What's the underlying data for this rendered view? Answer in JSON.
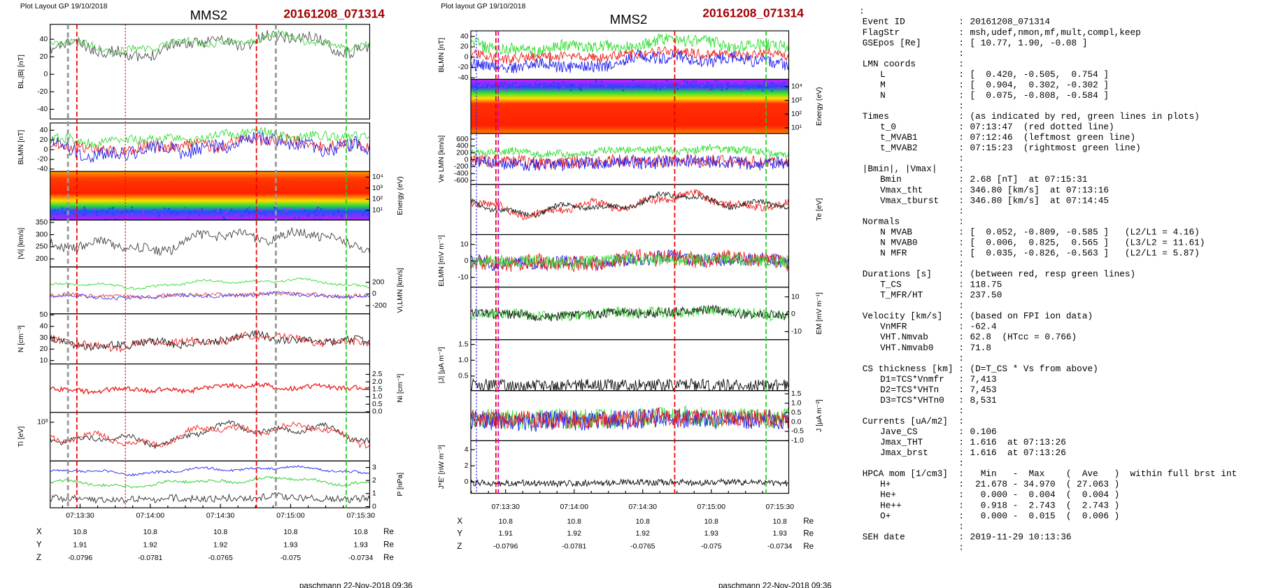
{
  "left_plot": {
    "header": "Plot Layout GP 19/10/2018",
    "spacecraft": "MMS2",
    "event": "20161208_071314",
    "panels": [
      {
        "ylabel": "BL,|B| [nT]",
        "side": "left",
        "ylim": [
          -51,
          57
        ],
        "yticks": [
          40,
          20,
          0,
          -20,
          -40
        ]
      },
      {
        "ylabel": "BLMN [nT]",
        "side": "left",
        "ylim": [
          -45,
          55
        ],
        "yticks": [
          40,
          20,
          0,
          -20,
          -40
        ]
      },
      {
        "ylabel": "Energy (eV)",
        "side": "right",
        "log": true,
        "ylim": [
          1.3,
          32000
        ],
        "yticks": [
          {
            "value": 10000,
            "label": "10⁴"
          },
          {
            "value": 1000,
            "label": "10³"
          },
          {
            "value": 100,
            "label": "10²"
          },
          {
            "value": 10,
            "label": "10¹"
          }
        ]
      },
      {
        "ylabel": "|Vi| [km/s]",
        "side": "left",
        "ylim": [
          167,
          360
        ],
        "yticks": [
          350,
          300,
          250,
          200
        ]
      },
      {
        "ylabel": "Vi,LMN [km/s]",
        "side": "right",
        "ylim": [
          -338,
          462
        ],
        "yticks": [
          200,
          0,
          -200
        ]
      },
      {
        "ylabel": "N [cm⁻³]",
        "side": "left",
        "ylim": [
          7,
          51
        ],
        "yticks": [
          50,
          40,
          30,
          20,
          10
        ]
      },
      {
        "ylabel": "Ni [cm⁻³]",
        "side": "right",
        "ylim": [
          -0.05,
          3.2
        ],
        "yticks": [
          2.5,
          {
            "value": 2,
            "label": "2.0"
          },
          1.5,
          {
            "value": 1,
            "label": "1.0"
          },
          0.5,
          {
            "value": 0,
            "label": "0.0"
          }
        ]
      },
      {
        "ylabel": "Ti [eV]",
        "side": "left",
        "log": true,
        "ylim": [
          200,
          1500
        ],
        "yticks": [
          {
            "value": 1000,
            "label": "10³"
          }
        ]
      },
      {
        "ylabel": "P [nPa]",
        "side": "right",
        "ylim": [
          -0.1,
          3.5
        ],
        "yticks": [
          3,
          2,
          1,
          0
        ]
      }
    ],
    "time_labels": [
      "07:13:30",
      "07:14:00",
      "07:14:30",
      "07:15:00",
      "07:15:30"
    ],
    "orbit": {
      "unit": "Re",
      "rows": [
        {
          "name": "X",
          "values": [
            10.8,
            10.8,
            10.8,
            10.8,
            10.8
          ]
        },
        {
          "name": "Y",
          "values": [
            1.91,
            1.92,
            1.92,
            1.93,
            1.93
          ]
        },
        {
          "name": "Z",
          "values": [
            -0.0796,
            -0.0781,
            -0.0765,
            -0.075,
            -0.0734
          ]
        }
      ]
    },
    "footer": "paschmann 22-Nov-2018 09:36"
  },
  "middle_plot": {
    "header": "Plot layout GP 19/10/2018",
    "spacecraft": "MMS2",
    "event": "20161208_071314",
    "panels": [
      {
        "ylabel": "BLMN [nT]",
        "side": "left",
        "ylim": [
          -43,
          51
        ],
        "yticks": [
          40,
          20,
          0,
          -20,
          -40
        ]
      },
      {
        "ylabel": "Energy (eV)",
        "side": "right",
        "log": true,
        "ylim": [
          3.9,
          34000
        ],
        "yticks": [
          {
            "value": 10000,
            "label": "10⁴"
          },
          {
            "value": 1000,
            "label": "10³"
          },
          {
            "value": 100,
            "label": "10²"
          },
          {
            "value": 10,
            "label": "10¹"
          }
        ]
      },
      {
        "ylabel": "Ve LMN [km/s]",
        "side": "left",
        "ylim": [
          -718,
          765
        ],
        "yticks": [
          600,
          400,
          200,
          0,
          -200,
          -400,
          -600
        ]
      },
      {
        "ylabel": "Te [eV]",
        "side": "right"
      },
      {
        "ylabel": "ELMN [mV m⁻¹]",
        "side": "left",
        "ylim": [
          -16,
          16
        ],
        "yticks": [
          10,
          0,
          -10
        ]
      },
      {
        "ylabel": "EM [mV m⁻¹]",
        "side": "right",
        "ylim": [
          -14.6,
          15.6
        ],
        "yticks": [
          10,
          0,
          -10
        ]
      },
      {
        "ylabel": "|J| [μA m⁻²]",
        "side": "left",
        "ylim": [
          0.04,
          1.65
        ],
        "yticks": [
          1.5,
          {
            "value": 1,
            "label": "1.0"
          },
          0.5
        ]
      },
      {
        "ylabel": "J [μA m⁻²]",
        "side": "right",
        "ylim": [
          -1,
          1.67
        ],
        "yticks": [
          1.5,
          {
            "value": 1,
            "label": "1.0"
          },
          0.5,
          {
            "value": 0,
            "label": "0.0"
          },
          -0.5,
          {
            "value": -1,
            "label": "-1.0"
          }
        ]
      },
      {
        "ylabel": "J*E' [nW m⁻³]",
        "side": "left",
        "ylim": [
          -1.4,
          5.1
        ],
        "yticks": [
          4,
          2,
          0
        ]
      }
    ],
    "time_labels": [
      "07:13:30",
      "07:14:00",
      "07:14:30",
      "07:15:00",
      "07:15:30"
    ],
    "orbit": {
      "unit": "Re",
      "rows": [
        {
          "name": "X",
          "values": [
            10.8,
            10.8,
            10.8,
            10.8,
            10.8
          ]
        },
        {
          "name": "Y",
          "values": [
            1.91,
            1.92,
            1.92,
            1.93,
            1.93
          ]
        },
        {
          "name": "Z",
          "values": [
            -0.0796,
            -0.0781,
            -0.0765,
            -0.075,
            -0.0734
          ]
        }
      ]
    },
    "footer": "paschmann 22-Nov-2018 09:36"
  },
  "summary": {
    "separator": ":",
    "sections": [
      {
        "items": [
          {
            "label": "Event ID",
            "value": "20161208_071314"
          },
          {
            "label": "FlagStr",
            "value": "msh,udef,nmon,mf,mult,compl,keep"
          },
          {
            "label": "GSEpos [Re]",
            "value": "[ 10.77, 1.90, -0.08 ]"
          }
        ]
      },
      {
        "heading": {
          "label": "LMN coords"
        },
        "items": [
          {
            "label": "L",
            "value": "[  0.420, -0.505,  0.754 ]"
          },
          {
            "label": "M",
            "value": "[  0.904,  0.302, -0.302 ]"
          },
          {
            "label": "N",
            "value": "[  0.075, -0.808, -0.584 ]"
          }
        ]
      },
      {
        "heading": {
          "label": "Times",
          "value": "(as indicated by red, green lines in plots)"
        },
        "items": [
          {
            "label": "t_0",
            "value": "07:13:47  (red dotted line)"
          },
          {
            "label": "t_MVAB1",
            "value": "07:12:46  (leftmost green line)"
          },
          {
            "label": "t_MVAB2",
            "value": "07:15:23  (rightmost green line)"
          }
        ]
      },
      {
        "heading": {
          "label": "|Bmin|, |Vmax|"
        },
        "items": [
          {
            "label": "Bmin",
            "value": "2.68 [nT]  at 07:15:31"
          },
          {
            "label": "Vmax_tht",
            "value": "346.80 [km/s]  at 07:13:16"
          },
          {
            "label": "Vmax_tburst",
            "value": "346.80 [km/s]  at 07:14:45"
          }
        ]
      },
      {
        "heading": {
          "label": "Normals"
        },
        "items": [
          {
            "label": "N MVAB",
            "value": "[  0.052, -0.809, -0.585 ]   (L2/L1 = 4.16)"
          },
          {
            "label": "N MVAB0",
            "value": "[  0.006,  0.825,  0.565 ]   (L3/L2 = 11.61)"
          },
          {
            "label": "N MFR",
            "value": "[  0.035, -0.826, -0.563 ]   (L2/L1 = 5.87)"
          }
        ]
      },
      {
        "heading": {
          "label": "Durations [s]",
          "value": "(between red, resp green lines)"
        },
        "items": [
          {
            "label": "T_CS",
            "value": "118.75"
          },
          {
            "label": "T_MFR/HT",
            "value": "237.50"
          }
        ]
      },
      {
        "heading": {
          "label": "Velocity [km/s]",
          "value": "(based on FPI ion data)"
        },
        "items": [
          {
            "label": "VnMFR",
            "value": "-62.4"
          },
          {
            "label": "VHT.Nmvab",
            "value": "62.8  (HTcc = 0.766)"
          },
          {
            "label": "VHT.Nmvab0",
            "value": "71.8"
          }
        ]
      },
      {
        "heading": {
          "label": "CS thickness [km]",
          "value": "(D=T_CS * Vs from above)"
        },
        "items": [
          {
            "label": "D1=TCS*Vnmfr",
            "value": "7,413"
          },
          {
            "label": "D2=TCS*VHTn",
            "value": "7,453"
          },
          {
            "label": "D3=TCS*VHTn0",
            "value": "8,531"
          }
        ]
      },
      {
        "heading": {
          "label": "Currents [uA/m2]"
        },
        "items": [
          {
            "label": "Jave_CS",
            "value": "0.106"
          },
          {
            "label": "Jmax_THT",
            "value": "1.616  at 07:13:26"
          },
          {
            "label": "Jmax_brst",
            "value": "1.616  at 07:13:26"
          }
        ]
      },
      {
        "heading": {
          "label": "HPCA mom [1/cm3]",
          "value": "  Min   -  Max    (  Ave   )  within full brst int"
        },
        "items": [
          {
            "label": "H+",
            "value": " 21.678 - 34.970  ( 27.063 )"
          },
          {
            "label": "He+",
            "value": "  0.000 -  0.004  (  0.004 )"
          },
          {
            "label": "He++",
            "value": "  0.918 -  2.743  (  2.743 )"
          },
          {
            "label": "O+",
            "value": "  0.000 -  0.015  (  0.006 )"
          }
        ]
      },
      {
        "heading": {
          "label": "SEH date",
          "value": "2019-11-29 10:13:36"
        }
      }
    ]
  }
}
